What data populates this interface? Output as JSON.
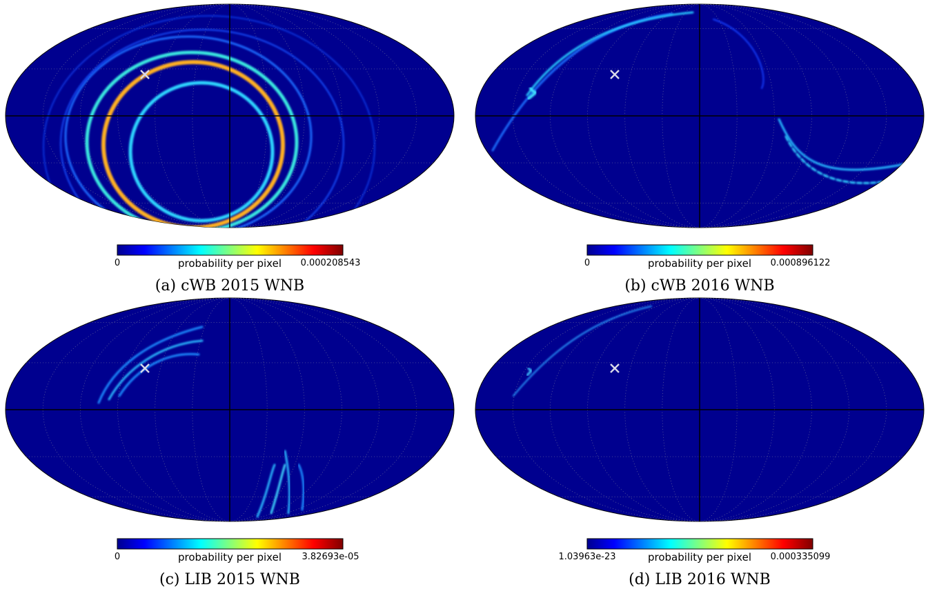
{
  "panels": [
    {
      "caption": "(a) cWB 2015 WNB",
      "colorbar": {
        "label": "probability per pixel",
        "min": "0",
        "max": "0.000208543"
      }
    },
    {
      "caption": "(b) cWB 2016 WNB",
      "colorbar": {
        "label": "probability per pixel",
        "min": "0",
        "max": "0.000896122"
      }
    },
    {
      "caption": "(c) LIB 2015 WNB",
      "colorbar": {
        "label": "probability per pixel",
        "min": "0",
        "max": "3.82693e-05"
      }
    },
    {
      "caption": "(d) LIB 2016 WNB",
      "colorbar": {
        "label": "probability per pixel",
        "min": "1.03963e-23",
        "max": "0.000335099"
      }
    }
  ]
}
